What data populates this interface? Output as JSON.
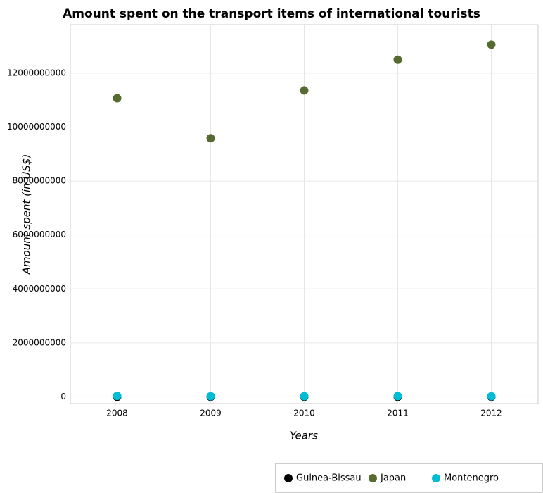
{
  "chart_data": {
    "type": "scatter",
    "title": "Amount spent on the transport items of international tourists",
    "xlabel": "Years",
    "ylabel": "Amount spent (in US$)",
    "categories": [
      "2008",
      "2009",
      "2010",
      "2011",
      "2012"
    ],
    "series": [
      {
        "name": "Guinea-Bissau",
        "color": "#000000",
        "values": [
          1000000,
          800000,
          700000,
          900000,
          800000
        ]
      },
      {
        "name": "Japan",
        "color": "#556b2f",
        "values": [
          11070000000,
          9590000000,
          11360000000,
          12500000000,
          13060000000
        ]
      },
      {
        "name": "Montenegro",
        "color": "#00bcd4",
        "values": [
          33000000,
          22000000,
          20000000,
          27000000,
          21000000
        ]
      }
    ],
    "ylim": [
      -250000000,
      13800000000
    ],
    "yticks": [
      0,
      2000000000,
      4000000000,
      6000000000,
      8000000000,
      10000000000,
      12000000000
    ],
    "grid": true,
    "legend": "bottom-right"
  }
}
